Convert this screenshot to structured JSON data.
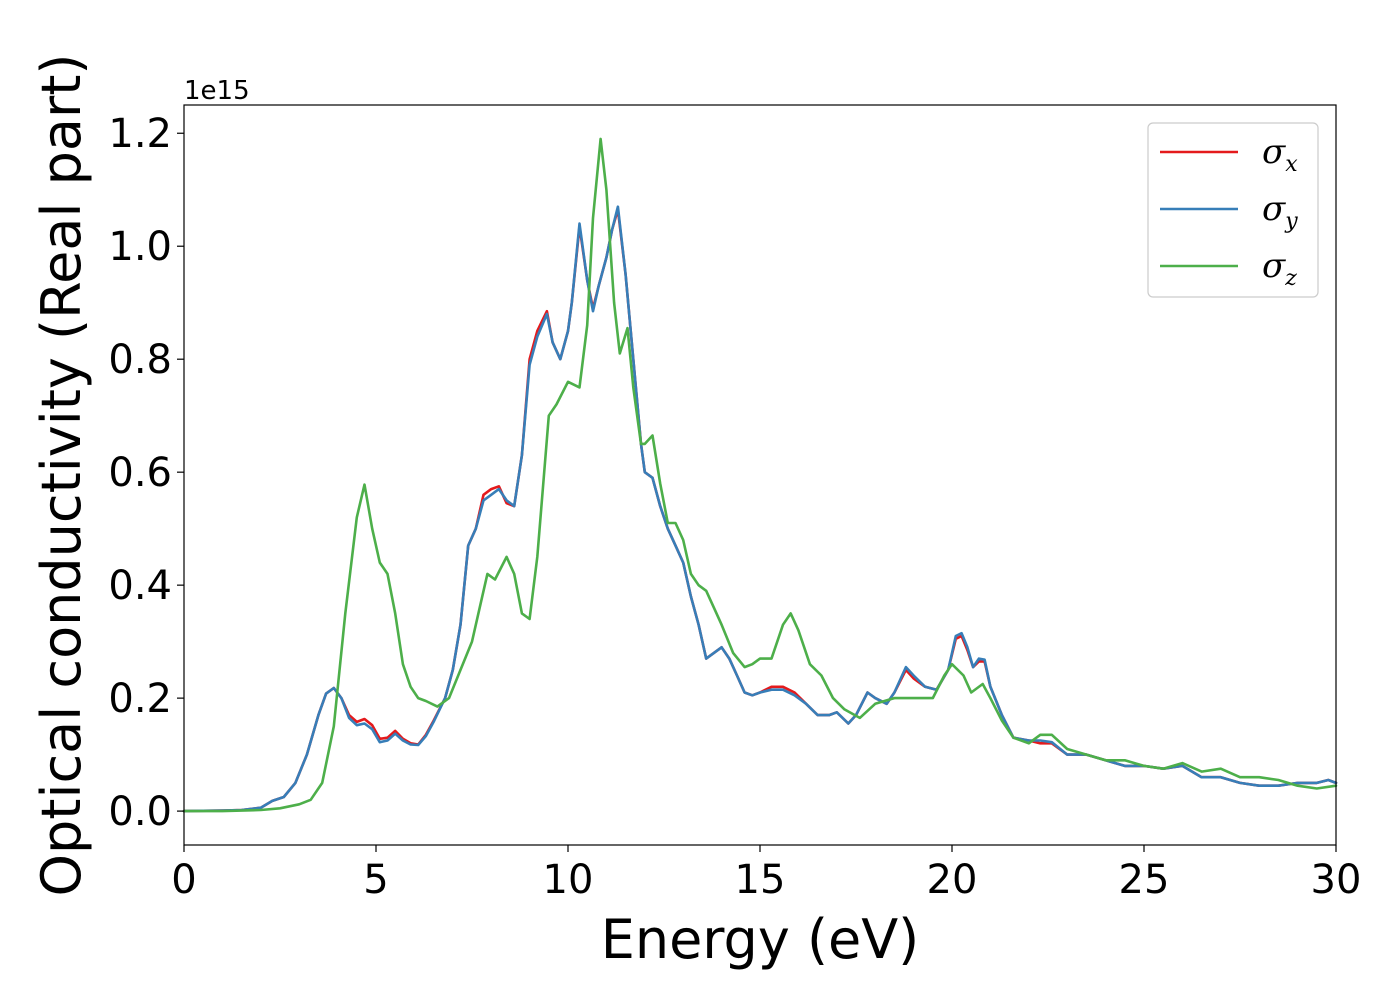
{
  "chart_data": {
    "type": "line",
    "title": "",
    "xlabel": "Energy (eV)",
    "ylabel": "Optical conductivity (Real part)",
    "y_offset_label": "1e15",
    "xlim": [
      0,
      30
    ],
    "ylim": [
      -0.06,
      1.25
    ],
    "xticks": [
      0,
      5,
      10,
      15,
      20,
      25,
      30
    ],
    "xtick_labels": [
      "0",
      "5",
      "10",
      "15",
      "20",
      "25",
      "30"
    ],
    "yticks": [
      0.0,
      0.2,
      0.4,
      0.6,
      0.8,
      1.0,
      1.2
    ],
    "ytick_labels": [
      "0.0",
      "0.2",
      "0.4",
      "0.6",
      "0.8",
      "1.0",
      "1.2"
    ],
    "grid": false,
    "legend_position": "top-right",
    "series": [
      {
        "symbol": "σ",
        "subscript": "x",
        "color": "#e41a1c",
        "x": [
          0,
          1,
          1.5,
          2,
          2.3,
          2.6,
          2.9,
          3.2,
          3.5,
          3.7,
          3.9,
          4.1,
          4.3,
          4.5,
          4.7,
          4.9,
          5.1,
          5.3,
          5.5,
          5.7,
          5.9,
          6.1,
          6.3,
          6.5,
          6.8,
          7.0,
          7.2,
          7.4,
          7.6,
          7.8,
          8.0,
          8.2,
          8.4,
          8.6,
          8.8,
          9.0,
          9.2,
          9.45,
          9.6,
          9.8,
          10.0,
          10.1,
          10.3,
          10.5,
          10.65,
          10.8,
          11.0,
          11.15,
          11.3,
          11.5,
          11.7,
          11.9,
          12.0,
          12.2,
          12.4,
          12.6,
          12.8,
          13.0,
          13.2,
          13.4,
          13.6,
          13.8,
          14.0,
          14.2,
          14.4,
          14.6,
          14.8,
          15.0,
          15.3,
          15.6,
          15.9,
          16.2,
          16.5,
          16.8,
          17.0,
          17.3,
          17.5,
          17.8,
          18.0,
          18.3,
          18.5,
          18.8,
          19.0,
          19.3,
          19.6,
          19.9,
          20.1,
          20.25,
          20.4,
          20.55,
          20.7,
          20.85,
          21.0,
          21.3,
          21.6,
          22.0,
          22.3,
          22.6,
          23.0,
          23.5,
          24.0,
          24.5,
          25.0,
          25.5,
          26.0,
          26.5,
          27.0,
          27.5,
          28.0,
          28.5,
          29.0,
          29.5,
          29.8,
          30.0
        ],
        "y": [
          0.0,
          0.001,
          0.002,
          0.006,
          0.018,
          0.025,
          0.05,
          0.1,
          0.17,
          0.208,
          0.218,
          0.2,
          0.17,
          0.158,
          0.163,
          0.152,
          0.128,
          0.13,
          0.142,
          0.128,
          0.12,
          0.118,
          0.135,
          0.16,
          0.2,
          0.25,
          0.33,
          0.47,
          0.5,
          0.56,
          0.57,
          0.575,
          0.545,
          0.54,
          0.63,
          0.8,
          0.85,
          0.885,
          0.83,
          0.8,
          0.85,
          0.9,
          1.035,
          0.94,
          0.89,
          0.93,
          0.98,
          1.03,
          1.065,
          0.95,
          0.8,
          0.65,
          0.6,
          0.59,
          0.54,
          0.5,
          0.47,
          0.44,
          0.38,
          0.33,
          0.27,
          0.28,
          0.29,
          0.27,
          0.24,
          0.21,
          0.205,
          0.21,
          0.22,
          0.22,
          0.21,
          0.19,
          0.17,
          0.17,
          0.175,
          0.155,
          0.17,
          0.21,
          0.2,
          0.19,
          0.21,
          0.25,
          0.235,
          0.22,
          0.215,
          0.25,
          0.305,
          0.31,
          0.285,
          0.255,
          0.265,
          0.265,
          0.22,
          0.17,
          0.13,
          0.125,
          0.12,
          0.12,
          0.1,
          0.1,
          0.09,
          0.08,
          0.08,
          0.075,
          0.08,
          0.06,
          0.06,
          0.05,
          0.045,
          0.045,
          0.05,
          0.05,
          0.055,
          0.05
        ]
      },
      {
        "symbol": "σ",
        "subscript": "y",
        "color": "#377eb8",
        "x": [
          0,
          1,
          1.5,
          2,
          2.3,
          2.6,
          2.9,
          3.2,
          3.5,
          3.7,
          3.9,
          4.1,
          4.3,
          4.5,
          4.7,
          4.9,
          5.1,
          5.3,
          5.5,
          5.7,
          5.9,
          6.1,
          6.3,
          6.5,
          6.8,
          7.0,
          7.2,
          7.4,
          7.6,
          7.8,
          8.0,
          8.2,
          8.4,
          8.6,
          8.8,
          9.0,
          9.2,
          9.45,
          9.6,
          9.8,
          10.0,
          10.1,
          10.3,
          10.5,
          10.65,
          10.8,
          11.0,
          11.15,
          11.3,
          11.5,
          11.7,
          11.9,
          12.0,
          12.2,
          12.4,
          12.6,
          12.8,
          13.0,
          13.2,
          13.4,
          13.6,
          13.8,
          14.0,
          14.2,
          14.4,
          14.6,
          14.8,
          15.0,
          15.3,
          15.6,
          15.9,
          16.2,
          16.5,
          16.8,
          17.0,
          17.3,
          17.5,
          17.8,
          18.0,
          18.3,
          18.5,
          18.8,
          19.0,
          19.3,
          19.6,
          19.9,
          20.1,
          20.25,
          20.4,
          20.55,
          20.7,
          20.85,
          21.0,
          21.3,
          21.6,
          22.0,
          22.3,
          22.6,
          23.0,
          23.5,
          24.0,
          24.5,
          25.0,
          25.5,
          26.0,
          26.5,
          27.0,
          27.5,
          28.0,
          28.5,
          29.0,
          29.5,
          29.8,
          30.0
        ],
        "y": [
          0.0,
          0.001,
          0.002,
          0.006,
          0.018,
          0.025,
          0.05,
          0.1,
          0.17,
          0.208,
          0.218,
          0.2,
          0.165,
          0.152,
          0.155,
          0.145,
          0.122,
          0.125,
          0.137,
          0.125,
          0.118,
          0.117,
          0.133,
          0.158,
          0.2,
          0.25,
          0.33,
          0.47,
          0.5,
          0.55,
          0.56,
          0.57,
          0.55,
          0.54,
          0.63,
          0.79,
          0.84,
          0.88,
          0.83,
          0.8,
          0.85,
          0.9,
          1.04,
          0.94,
          0.885,
          0.93,
          0.98,
          1.03,
          1.07,
          0.95,
          0.8,
          0.65,
          0.6,
          0.59,
          0.54,
          0.5,
          0.47,
          0.44,
          0.38,
          0.33,
          0.27,
          0.28,
          0.29,
          0.27,
          0.24,
          0.21,
          0.205,
          0.21,
          0.215,
          0.215,
          0.205,
          0.19,
          0.17,
          0.17,
          0.175,
          0.155,
          0.17,
          0.21,
          0.2,
          0.19,
          0.21,
          0.255,
          0.24,
          0.22,
          0.215,
          0.25,
          0.31,
          0.315,
          0.29,
          0.255,
          0.27,
          0.268,
          0.22,
          0.17,
          0.13,
          0.125,
          0.125,
          0.122,
          0.1,
          0.1,
          0.09,
          0.08,
          0.08,
          0.075,
          0.08,
          0.06,
          0.06,
          0.05,
          0.045,
          0.045,
          0.05,
          0.05,
          0.055,
          0.05
        ]
      },
      {
        "symbol": "σ",
        "subscript": "z",
        "color": "#4daf4a",
        "x": [
          0,
          1,
          2,
          2.5,
          3.0,
          3.3,
          3.6,
          3.9,
          4.2,
          4.5,
          4.7,
          4.9,
          5.1,
          5.3,
          5.5,
          5.7,
          5.9,
          6.1,
          6.3,
          6.6,
          6.9,
          7.2,
          7.5,
          7.7,
          7.9,
          8.1,
          8.4,
          8.6,
          8.8,
          9.0,
          9.2,
          9.5,
          9.7,
          10.0,
          10.3,
          10.5,
          10.65,
          10.85,
          11.0,
          11.2,
          11.35,
          11.55,
          11.7,
          11.9,
          12.0,
          12.2,
          12.4,
          12.6,
          12.8,
          13.0,
          13.2,
          13.4,
          13.6,
          13.8,
          14.0,
          14.3,
          14.6,
          14.8,
          15.0,
          15.3,
          15.6,
          15.8,
          16.0,
          16.3,
          16.6,
          16.9,
          17.2,
          17.6,
          18.0,
          18.5,
          19.0,
          19.5,
          19.8,
          20.0,
          20.3,
          20.5,
          20.8,
          21.0,
          21.3,
          21.6,
          22.0,
          22.3,
          22.6,
          23.0,
          23.5,
          24.0,
          24.5,
          25.0,
          25.5,
          26.0,
          26.5,
          27.0,
          27.5,
          28.0,
          28.5,
          29.0,
          29.5,
          30.0
        ],
        "y": [
          0.0,
          0.0,
          0.002,
          0.005,
          0.012,
          0.02,
          0.05,
          0.15,
          0.35,
          0.52,
          0.578,
          0.5,
          0.44,
          0.42,
          0.35,
          0.26,
          0.22,
          0.2,
          0.195,
          0.185,
          0.2,
          0.25,
          0.3,
          0.36,
          0.42,
          0.41,
          0.45,
          0.42,
          0.35,
          0.34,
          0.45,
          0.7,
          0.72,
          0.76,
          0.75,
          0.86,
          1.05,
          1.19,
          1.1,
          0.9,
          0.81,
          0.855,
          0.75,
          0.65,
          0.65,
          0.665,
          0.58,
          0.51,
          0.51,
          0.48,
          0.42,
          0.4,
          0.39,
          0.36,
          0.33,
          0.28,
          0.255,
          0.26,
          0.27,
          0.27,
          0.33,
          0.35,
          0.32,
          0.26,
          0.24,
          0.2,
          0.18,
          0.165,
          0.19,
          0.2,
          0.2,
          0.2,
          0.24,
          0.26,
          0.24,
          0.21,
          0.225,
          0.2,
          0.16,
          0.13,
          0.12,
          0.135,
          0.135,
          0.11,
          0.1,
          0.09,
          0.09,
          0.08,
          0.075,
          0.085,
          0.07,
          0.075,
          0.06,
          0.06,
          0.055,
          0.045,
          0.04,
          0.045
        ]
      }
    ]
  }
}
